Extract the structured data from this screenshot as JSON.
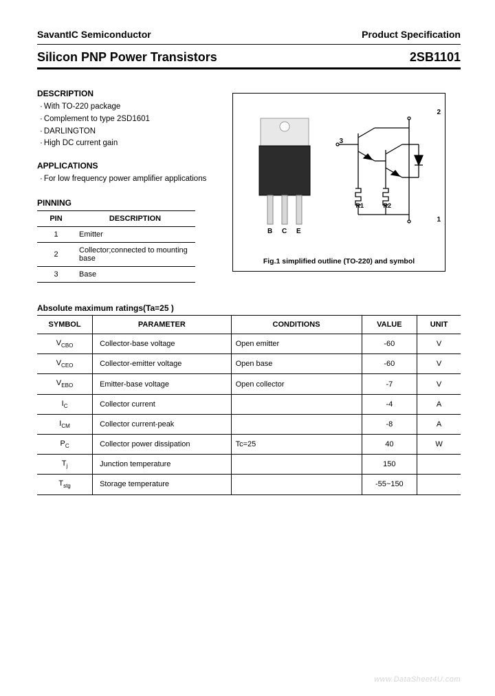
{
  "header": {
    "company": "SavantIC Semiconductor",
    "spec": "Product Specification",
    "title": "Silicon PNP Power Transistors",
    "part": "2SB1101"
  },
  "description": {
    "heading": "DESCRIPTION",
    "items": [
      "With TO-220 package",
      "Complement to type 2SD1601",
      "DARLINGTON",
      "High DC current gain"
    ]
  },
  "applications": {
    "heading": "APPLICATIONS",
    "items": [
      "For low frequency power amplifier applications"
    ]
  },
  "pinning": {
    "heading": "PINNING",
    "cols": [
      "PIN",
      "DESCRIPTION"
    ],
    "rows": [
      {
        "pin": "1",
        "desc": "Emitter"
      },
      {
        "pin": "2",
        "desc": "Collector;connected to mounting base"
      },
      {
        "pin": "3",
        "desc": "Base"
      }
    ]
  },
  "figure": {
    "caption": "Fig.1 simplified outline (TO-220) and symbol",
    "pkg_pin_labels": [
      "B",
      "C",
      "E"
    ],
    "schem_labels": {
      "pin3": "3",
      "pin2": "2",
      "pin1": "1",
      "r1": "R1",
      "r2": "R2"
    },
    "colors": {
      "pkg_body": "#2c2c2c",
      "pkg_tab": "#e8e8e8",
      "line": "#000000"
    }
  },
  "ratings": {
    "heading": "Absolute maximum ratings(Ta=25   )",
    "cols": [
      "SYMBOL",
      "PARAMETER",
      "CONDITIONS",
      "VALUE",
      "UNIT"
    ],
    "rows": [
      {
        "sym": "V",
        "sub": "CBO",
        "param": "Collector-base voltage",
        "cond": "Open emitter",
        "val": "-60",
        "unit": "V"
      },
      {
        "sym": "V",
        "sub": "CEO",
        "param": "Collector-emitter voltage",
        "cond": "Open base",
        "val": "-60",
        "unit": "V"
      },
      {
        "sym": "V",
        "sub": "EBO",
        "param": "Emitter-base voltage",
        "cond": "Open collector",
        "val": "-7",
        "unit": "V"
      },
      {
        "sym": "I",
        "sub": "C",
        "param": "Collector current",
        "cond": "",
        "val": "-4",
        "unit": "A"
      },
      {
        "sym": "I",
        "sub": "CM",
        "param": "Collector current-peak",
        "cond": "",
        "val": "-8",
        "unit": "A"
      },
      {
        "sym": "P",
        "sub": "C",
        "param": "Collector power dissipation",
        "cond": "Tc=25",
        "val": "40",
        "unit": "W"
      },
      {
        "sym": "T",
        "sub": "j",
        "param": "Junction temperature",
        "cond": "",
        "val": "150",
        "unit": ""
      },
      {
        "sym": "T",
        "sub": "stg",
        "param": "Storage temperature",
        "cond": "",
        "val": "-55~150",
        "unit": ""
      }
    ]
  },
  "watermark": "www.DataSheet4U.com"
}
